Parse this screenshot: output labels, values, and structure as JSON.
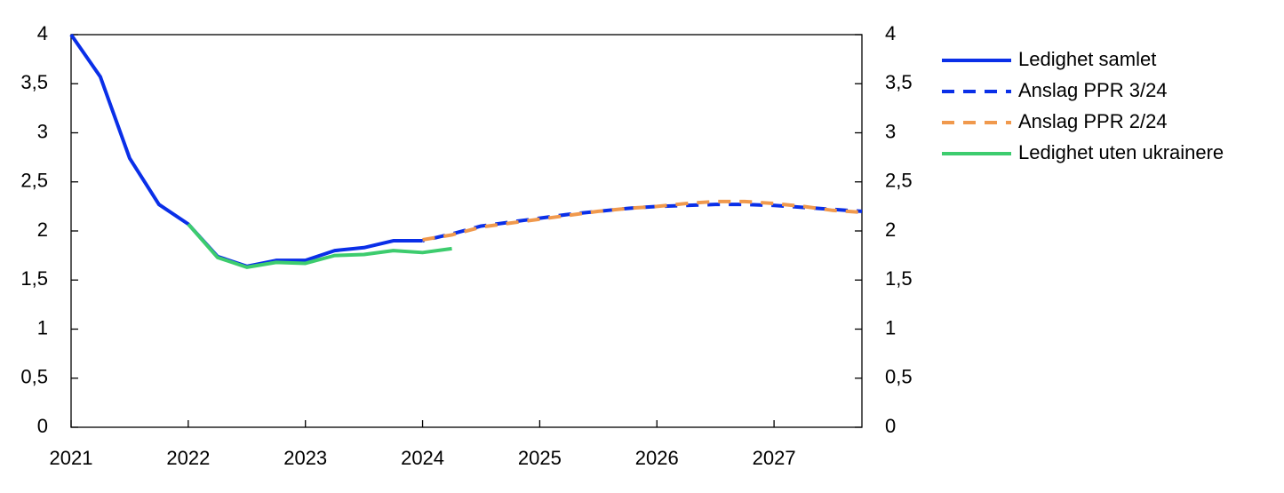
{
  "chart_data": {
    "type": "line",
    "xlim": [
      2021,
      2027.75
    ],
    "xticks": [
      2021,
      2022,
      2023,
      2024,
      2025,
      2026,
      2027
    ],
    "ylim": [
      0,
      4
    ],
    "yticks": [
      0,
      {
        "value": 0.5,
        "label": "0,5"
      },
      1,
      {
        "value": 1.5,
        "label": "1,5"
      },
      2,
      {
        "value": 2.5,
        "label": "2,5"
      },
      3,
      {
        "value": 3.5,
        "label": "3,5"
      },
      4
    ],
    "y2lim": [
      0,
      4
    ],
    "y2ticks": [
      0,
      {
        "value": 0.5,
        "label": "0,5"
      },
      1,
      {
        "value": 1.5,
        "label": "1,5"
      },
      2,
      {
        "value": 2.5,
        "label": "2,5"
      },
      3,
      {
        "value": 3.5,
        "label": "3,5"
      },
      4
    ],
    "legend": "right",
    "series": [
      {
        "name": "Ledighet samlet",
        "color": "#0a2fe8",
        "dash": false,
        "x": [
          2021,
          2021.25,
          2021.5,
          2021.75,
          2022,
          2022.25,
          2022.5,
          2022.75,
          2023,
          2023.25,
          2023.5,
          2023.75,
          2024
        ],
        "values": [
          4.0,
          3.57,
          2.74,
          2.27,
          2.07,
          1.74,
          1.64,
          1.7,
          1.7,
          1.8,
          1.83,
          1.9,
          1.9
        ]
      },
      {
        "name": "Anslag PPR 3/24",
        "color": "#0a2fe8",
        "dash": true,
        "x": [
          2024,
          2024.25,
          2024.5,
          2024.75,
          2025,
          2025.25,
          2025.5,
          2025.75,
          2026,
          2026.25,
          2026.5,
          2026.75,
          2027,
          2027.25,
          2027.5,
          2027.75
        ],
        "values": [
          1.9,
          1.97,
          2.05,
          2.09,
          2.13,
          2.17,
          2.2,
          2.23,
          2.25,
          2.26,
          2.27,
          2.27,
          2.26,
          2.24,
          2.22,
          2.2
        ]
      },
      {
        "name": "Anslag PPR 2/24",
        "color": "#f0994d",
        "dash": true,
        "x": [
          2024,
          2024.25,
          2024.5,
          2024.75,
          2025,
          2025.25,
          2025.5,
          2025.75,
          2026,
          2026.25,
          2026.5,
          2026.75,
          2027,
          2027.25,
          2027.5,
          2027.75
        ],
        "values": [
          1.91,
          1.96,
          2.04,
          2.08,
          2.12,
          2.16,
          2.2,
          2.23,
          2.25,
          2.28,
          2.3,
          2.3,
          2.28,
          2.25,
          2.21,
          2.19
        ]
      },
      {
        "name": "Ledighet uten ukrainere",
        "color": "#3dcc6e",
        "dash": false,
        "x": [
          2022,
          2022.25,
          2022.5,
          2022.75,
          2023,
          2023.25,
          2023.5,
          2023.75,
          2024,
          2024.25
        ],
        "values": [
          2.07,
          1.73,
          1.63,
          1.68,
          1.67,
          1.75,
          1.76,
          1.8,
          1.78,
          1.82
        ]
      }
    ]
  }
}
